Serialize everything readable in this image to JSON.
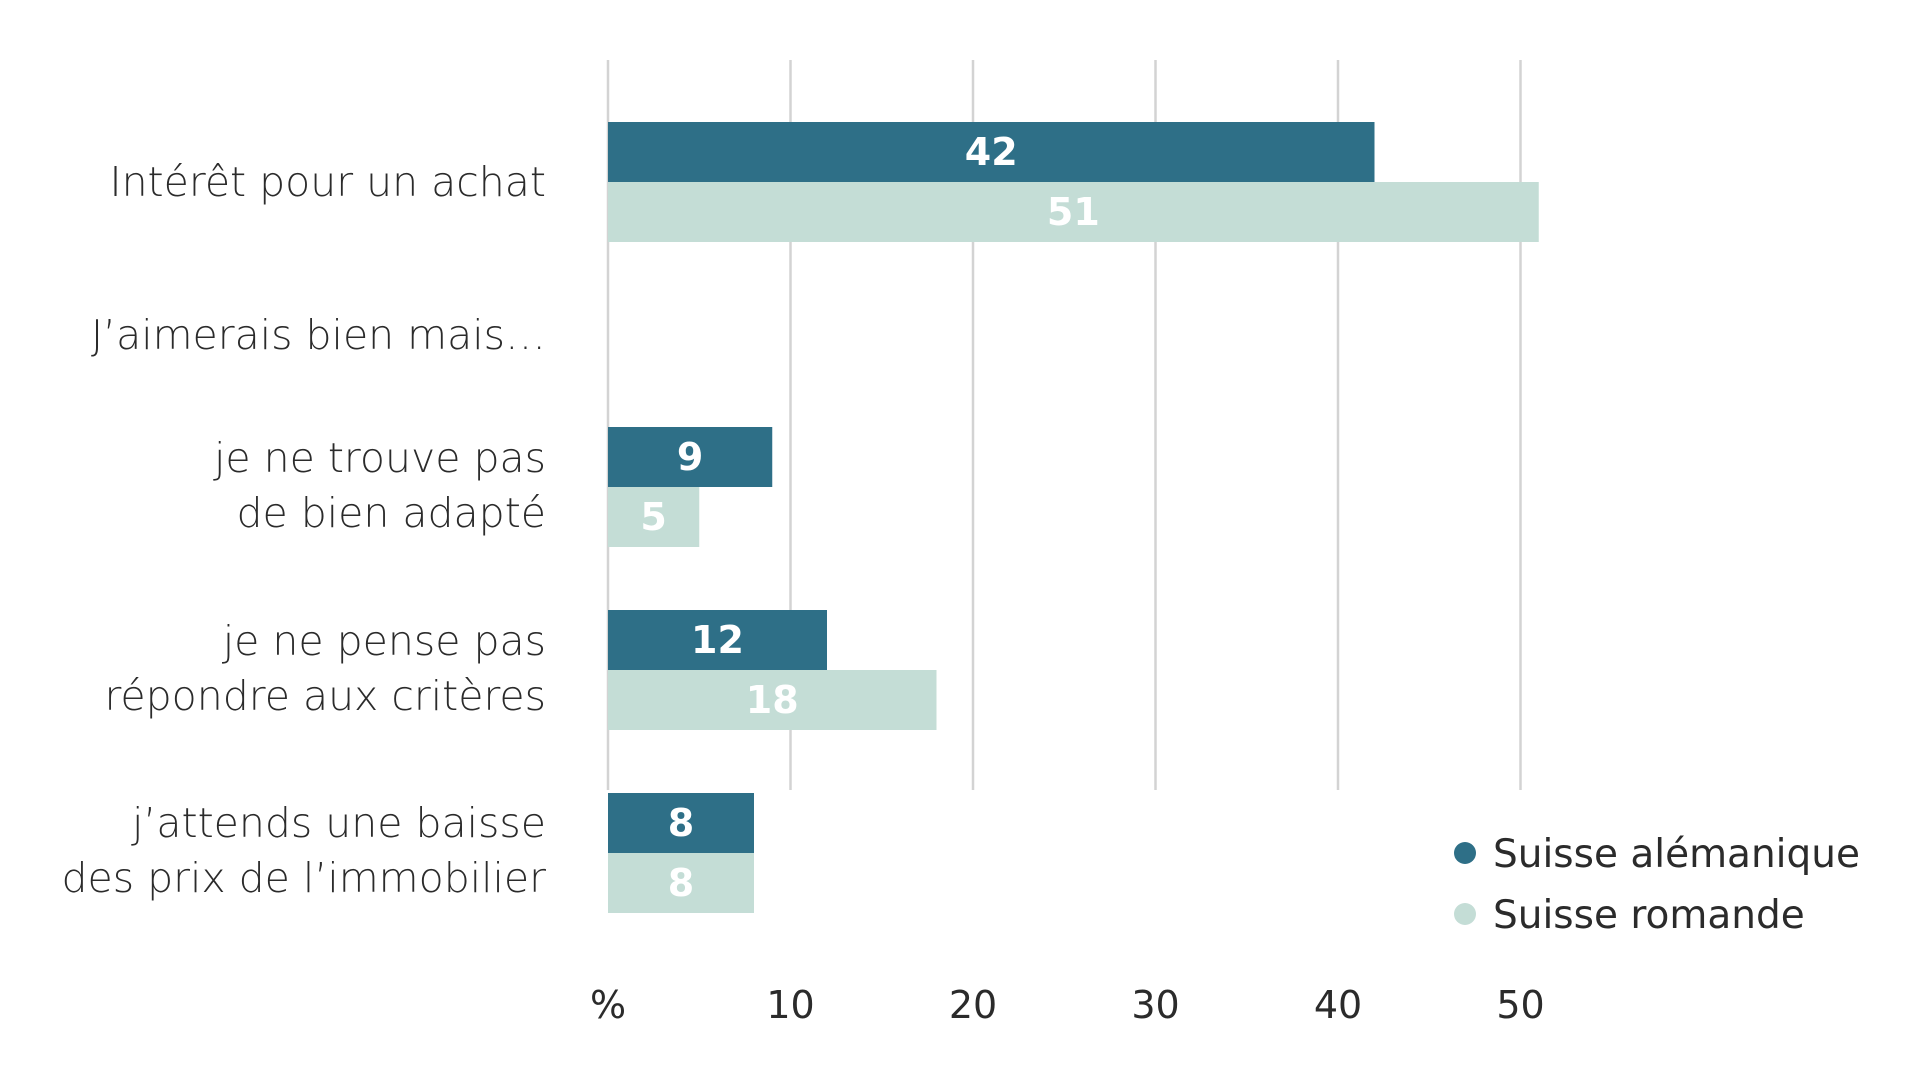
{
  "chart_data": {
    "type": "bar",
    "orientation": "horizontal",
    "categories": [
      "Intérêt pour un achat",
      "J’aimerais bien mais…",
      "je ne trouve pas de bien adapté",
      "je ne pense pas répondre aux critères",
      "j’attends une baisse des prix de l’immobilier"
    ],
    "category_lines": [
      [
        "Intérêt pour un achat"
      ],
      [
        "J’aimerais bien mais…"
      ],
      [
        "je ne trouve pas",
        "de bien adapté"
      ],
      [
        "je ne pense pas",
        "répondre aux critères"
      ],
      [
        "j’attends une baisse",
        "des prix de l’immobilier"
      ]
    ],
    "series": [
      {
        "name": "Suisse alémanique",
        "color": "#2e6f87",
        "values": [
          42,
          null,
          9,
          12,
          8
        ]
      },
      {
        "name": "Suisse romande",
        "color": "#c4ddd6",
        "values": [
          51,
          null,
          5,
          18,
          8
        ]
      }
    ],
    "xlim": [
      0,
      50
    ],
    "xticks": [
      0,
      10,
      20,
      30,
      40,
      50
    ],
    "xtick_labels": [
      "%",
      "10",
      "20",
      "30",
      "40",
      "50"
    ],
    "grid": true,
    "data_labels": true,
    "legend_position": "bottom-right"
  }
}
